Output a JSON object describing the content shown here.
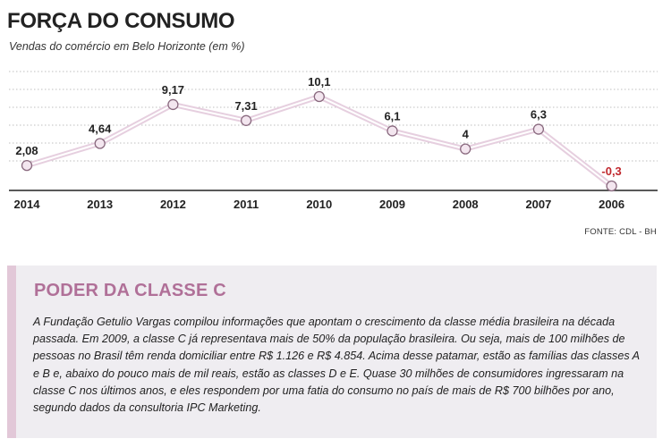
{
  "header": {
    "title": "FORÇA DO CONSUMO",
    "subtitle": "Vendas do comércio em Belo Horizonte (em %)",
    "source": "FONTE: CDL - BH"
  },
  "box": {
    "title": "PODER DA CLASSE C",
    "text": "A Fundação Getulio Vargas compilou informações que apontam o crescimento da classe média brasileira na década passada. Em 2009, a classe C já representava mais de 50% da população brasileira. Ou seja, mais de 100 milhões de pessoas no Brasil têm renda domiciliar entre R$ 1.126 e R$ 4.854. Acima desse patamar, estão as famílias das classes A e B e, abaixo do pouco mais de mil reais, estão as classes D e E. Quase 30 milhões de consumidores ingressaram na classe C nos últimos anos, e eles respondem por uma fatia do consumo no país de mais de R$ 700 bilhões por ano, segundo dados da consultoria IPC Marketing."
  },
  "colors": {
    "line": "#e6cfdf",
    "marker_fill": "#f3e6ef",
    "marker_stroke": "#8a6a7f",
    "negative": "#c0272d",
    "accent": "#b07098"
  },
  "chart_data": {
    "type": "line",
    "title": "FORÇA DO CONSUMO",
    "subtitle": "Vendas do comércio em Belo Horizonte (em %)",
    "categories": [
      "2014",
      "2013",
      "2012",
      "2011",
      "2010",
      "2009",
      "2008",
      "2007",
      "2006"
    ],
    "values": [
      2.08,
      4.64,
      9.17,
      7.31,
      10.1,
      6.1,
      4,
      6.3,
      -0.3
    ],
    "value_labels": [
      "2,08",
      "4,64",
      "9,17",
      "7,31",
      "10,1",
      "6,1",
      "4",
      "6,3",
      "-0,3"
    ],
    "ylim": [
      -0.3,
      10.1
    ],
    "grid": true,
    "legend": "none"
  }
}
